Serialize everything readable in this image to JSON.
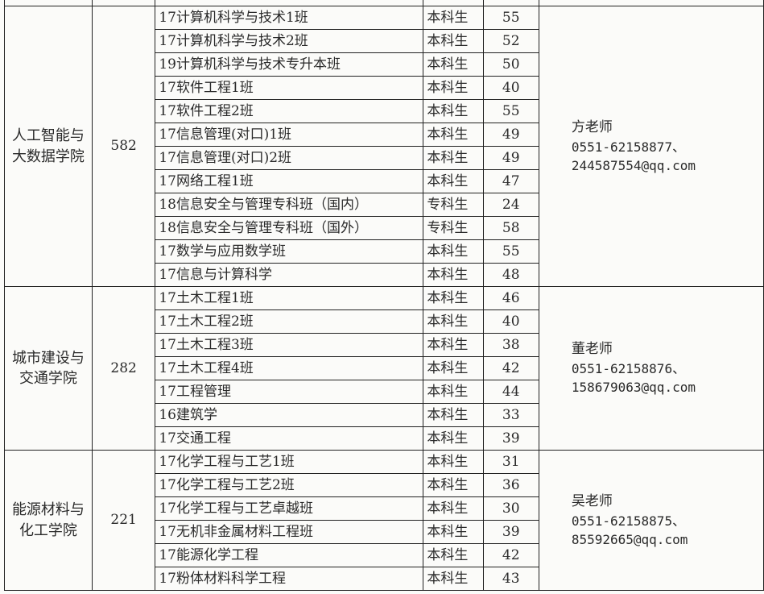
{
  "groups": [
    {
      "college": "人工智能与大数据学院",
      "total": "582",
      "contact": {
        "name": "方老师",
        "phone": "0551-62158877、",
        "email": "244587554@qq.com"
      },
      "rows": [
        {
          "class": "17计算机科学与技术1班",
          "level": "本科生",
          "count": "55"
        },
        {
          "class": "17计算机科学与技术2班",
          "level": "本科生",
          "count": "52"
        },
        {
          "class": "19计算机科学与技术专升本班",
          "level": "本科生",
          "count": "50"
        },
        {
          "class": "17软件工程1班",
          "level": "本科生",
          "count": "40"
        },
        {
          "class": "17软件工程2班",
          "level": "本科生",
          "count": "55"
        },
        {
          "class": "17信息管理(对口)1班",
          "level": "本科生",
          "count": "49"
        },
        {
          "class": "17信息管理(对口)2班",
          "level": "本科生",
          "count": "49"
        },
        {
          "class": "17网络工程1班",
          "level": "本科生",
          "count": "47"
        },
        {
          "class": "18信息安全与管理专科班（国内）",
          "level": "专科生",
          "count": "24"
        },
        {
          "class": "18信息安全与管理专科班（国外）",
          "level": "专科生",
          "count": "58"
        },
        {
          "class": "17数学与应用数学班",
          "level": "本科生",
          "count": "55"
        },
        {
          "class": "17信息与计算科学",
          "level": "本科生",
          "count": "48"
        }
      ]
    },
    {
      "college": "城市建设与交通学院",
      "total": "282",
      "contact": {
        "name": "董老师",
        "phone": "0551-62158876、",
        "email": "158679063@qq.com"
      },
      "rows": [
        {
          "class": "17土木工程1班",
          "level": "本科生",
          "count": "46"
        },
        {
          "class": "17土木工程2班",
          "level": "本科生",
          "count": "40"
        },
        {
          "class": "17土木工程3班",
          "level": "本科生",
          "count": "38"
        },
        {
          "class": "17土木工程4班",
          "level": "本科生",
          "count": "42"
        },
        {
          "class": "17工程管理",
          "level": "本科生",
          "count": "44"
        },
        {
          "class": "16建筑学",
          "level": "本科生",
          "count": "33"
        },
        {
          "class": "17交通工程",
          "level": "本科生",
          "count": "39"
        }
      ]
    },
    {
      "college": "能源材料与化工学院",
      "total": "221",
      "contact": {
        "name": "吴老师",
        "phone": "0551-62158875、",
        "email": "85592665@qq.com"
      },
      "rows": [
        {
          "class": "17化学工程与工艺1班",
          "level": "本科生",
          "count": "31"
        },
        {
          "class": "17化学工程与工艺2班",
          "level": "本科生",
          "count": "36"
        },
        {
          "class": "17化学工程与工艺卓越班",
          "level": "本科生",
          "count": "30"
        },
        {
          "class": "17无机非金属材料工程班",
          "level": "本科生",
          "count": "39"
        },
        {
          "class": "17能源化学工程",
          "level": "本科生",
          "count": "42"
        },
        {
          "class": "17粉体材料科学工程",
          "level": "本科生",
          "count": "43"
        }
      ]
    }
  ]
}
